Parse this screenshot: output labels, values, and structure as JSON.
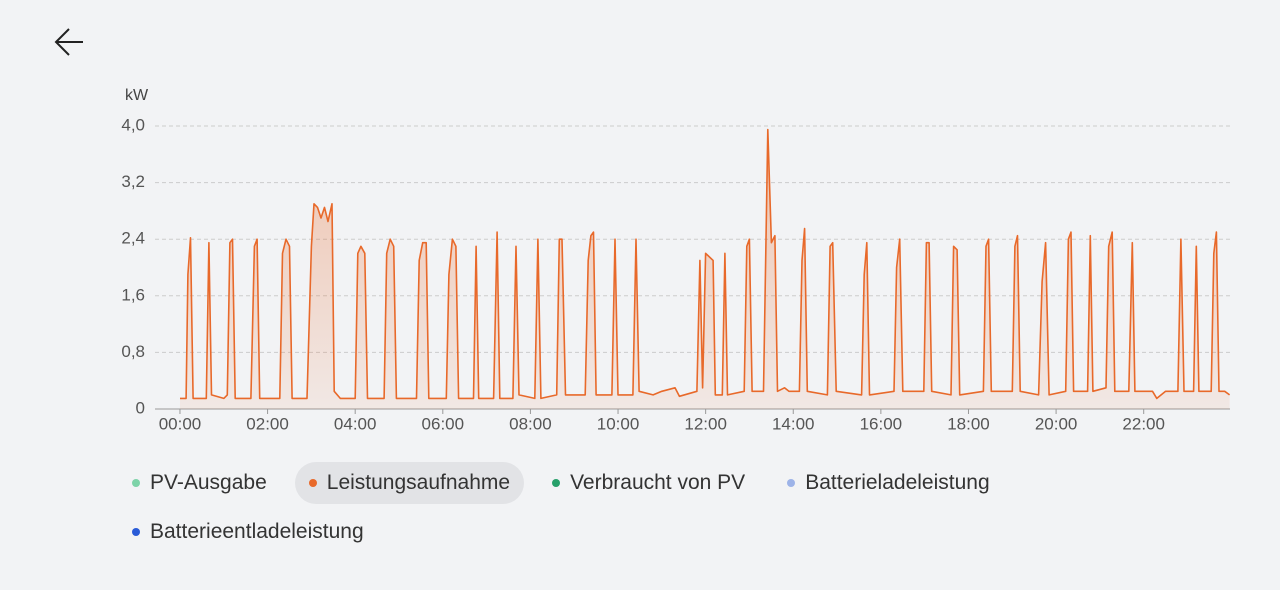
{
  "chart_data": {
    "type": "line",
    "y_label": "kW",
    "color": "#e8692a",
    "xlim": [
      -0.57,
      23.97
    ],
    "ylim": [
      0,
      4.0
    ],
    "xticks": [
      {
        "value": 0,
        "label": "00:00"
      },
      {
        "value": 2,
        "label": "02:00"
      },
      {
        "value": 4,
        "label": "04:00"
      },
      {
        "value": 6,
        "label": "06:00"
      },
      {
        "value": 8,
        "label": "08:00"
      },
      {
        "value": 10,
        "label": "10:00"
      },
      {
        "value": 12,
        "label": "12:00"
      },
      {
        "value": 14,
        "label": "14:00"
      },
      {
        "value": 16,
        "label": "16:00"
      },
      {
        "value": 18,
        "label": "18:00"
      },
      {
        "value": 20,
        "label": "20:00"
      },
      {
        "value": 22,
        "label": "22:00"
      }
    ],
    "yticks": [
      0,
      {
        "value": 0.8,
        "label": "0,8"
      },
      {
        "value": 1.6,
        "label": "1,6"
      },
      {
        "value": 2.4,
        "label": "2,4"
      },
      {
        "value": 3.2,
        "label": "3,2"
      },
      {
        "value": 4.0,
        "label": "4,0"
      }
    ],
    "grid": true,
    "legend": [
      {
        "name": "PV-Ausgabe",
        "color": "#7dd3a8",
        "active": false
      },
      {
        "name": "Leistungsaufnahme",
        "color": "#e8692a",
        "active": true
      },
      {
        "name": "Verbraucht von PV",
        "color": "#27a06a",
        "active": false
      },
      {
        "name": "Batterieladeleistung",
        "color": "#9db3e8",
        "active": false
      },
      {
        "name": "Batterieentladeleistung",
        "color": "#2a5bd7",
        "active": false
      }
    ],
    "x": [
      0,
      0.14,
      0.18,
      0.24,
      0.3,
      0.6,
      0.66,
      0.72,
      1.0,
      1.08,
      1.14,
      1.2,
      1.26,
      1.62,
      1.7,
      1.76,
      1.82,
      2.28,
      2.34,
      2.42,
      2.5,
      2.56,
      2.9,
      3.0,
      3.06,
      3.14,
      3.22,
      3.3,
      3.38,
      3.47,
      3.52,
      3.66,
      4.0,
      4.06,
      4.13,
      4.22,
      4.28,
      4.66,
      4.72,
      4.8,
      4.88,
      4.94,
      5.4,
      5.46,
      5.54,
      5.62,
      5.68,
      6.08,
      6.14,
      6.22,
      6.3,
      6.36,
      6.7,
      6.76,
      6.82,
      7.16,
      7.24,
      7.3,
      7.6,
      7.67,
      7.74,
      8.1,
      8.17,
      8.24,
      8.6,
      8.66,
      8.72,
      8.8,
      9.25,
      9.32,
      9.38,
      9.44,
      9.5,
      9.86,
      9.93,
      10.0,
      10.34,
      10.41,
      10.48,
      10.8,
      11.0,
      11.3,
      11.4,
      11.8,
      11.87,
      11.93,
      12.0,
      12.17,
      12.22,
      12.38,
      12.44,
      12.5,
      12.88,
      12.94,
      13.0,
      13.06,
      13.32,
      13.42,
      13.5,
      13.58,
      13.64,
      13.8,
      13.9,
      14.14,
      14.2,
      14.26,
      14.32,
      14.78,
      14.84,
      14.9,
      14.98,
      15.56,
      15.62,
      15.68,
      15.74,
      16.3,
      16.36,
      16.43,
      16.5,
      16.98,
      17.04,
      17.1,
      17.16,
      17.6,
      17.66,
      17.74,
      17.8,
      18.34,
      18.4,
      18.46,
      18.52,
      19.0,
      19.06,
      19.12,
      19.18,
      19.6,
      19.68,
      19.76,
      19.84,
      20.22,
      20.28,
      20.34,
      20.4,
      20.72,
      20.78,
      20.84,
      21.14,
      21.2,
      21.28,
      21.34,
      21.66,
      21.74,
      21.8,
      22.2,
      22.3,
      22.5,
      22.78,
      22.85,
      22.92,
      23.14,
      23.2,
      23.26,
      23.54,
      23.6,
      23.66,
      23.72,
      23.85,
      23.96
    ],
    "values": [
      0.15,
      0.15,
      1.9,
      2.42,
      0.15,
      0.15,
      2.35,
      0.2,
      0.15,
      0.2,
      2.35,
      2.4,
      0.15,
      0.15,
      2.3,
      2.4,
      0.15,
      0.15,
      2.2,
      2.4,
      2.3,
      0.15,
      0.15,
      2.3,
      2.9,
      2.85,
      2.7,
      2.85,
      2.65,
      2.9,
      0.25,
      0.15,
      0.15,
      2.2,
      2.3,
      2.2,
      0.15,
      0.15,
      2.2,
      2.4,
      2.3,
      0.15,
      0.15,
      2.1,
      2.35,
      2.35,
      0.15,
      0.15,
      1.9,
      2.4,
      2.3,
      0.15,
      0.15,
      2.3,
      0.15,
      0.15,
      2.5,
      0.15,
      0.15,
      2.3,
      0.2,
      0.15,
      2.4,
      0.15,
      0.2,
      2.4,
      2.4,
      0.2,
      0.2,
      2.1,
      2.45,
      2.5,
      0.2,
      0.2,
      2.4,
      0.2,
      0.2,
      2.4,
      0.25,
      0.2,
      0.25,
      0.3,
      0.18,
      0.25,
      2.1,
      0.3,
      2.2,
      2.1,
      0.2,
      0.2,
      2.2,
      0.2,
      0.25,
      2.3,
      2.4,
      0.25,
      0.25,
      3.95,
      2.35,
      2.45,
      0.25,
      0.3,
      0.25,
      0.25,
      2.1,
      2.55,
      0.25,
      0.2,
      2.3,
      2.35,
      0.25,
      0.2,
      1.9,
      2.35,
      0.2,
      0.25,
      2.0,
      2.4,
      0.25,
      0.25,
      2.35,
      2.35,
      0.25,
      0.2,
      2.3,
      2.25,
      0.2,
      0.25,
      2.3,
      2.4,
      0.25,
      0.25,
      2.3,
      2.45,
      0.25,
      0.2,
      1.8,
      2.35,
      0.2,
      0.25,
      2.4,
      2.5,
      0.25,
      0.25,
      2.45,
      0.25,
      0.3,
      2.3,
      2.5,
      0.25,
      0.25,
      2.35,
      0.25,
      0.25,
      0.15,
      0.25,
      0.25,
      2.4,
      0.25,
      0.25,
      2.3,
      0.25,
      0.25,
      2.2,
      2.5,
      0.25,
      0.25,
      0.2
    ]
  }
}
